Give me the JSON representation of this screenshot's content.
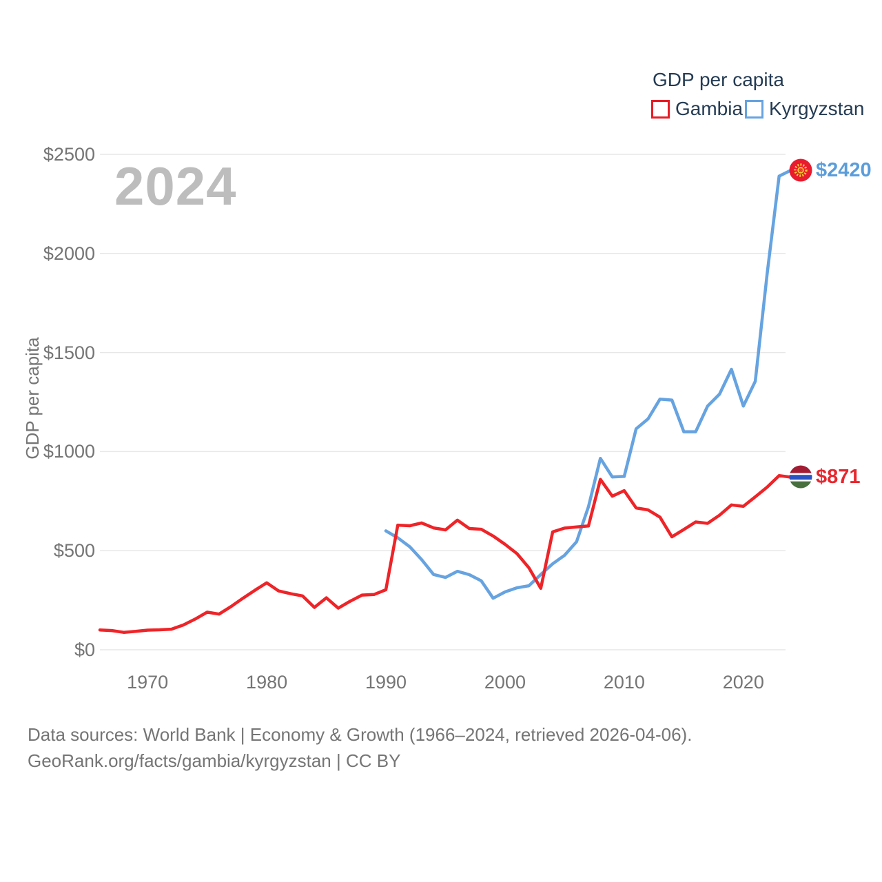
{
  "watermark": "2024",
  "legend": {
    "title": "GDP per capita",
    "items": [
      {
        "label": "Gambia",
        "color": "#e81c24"
      },
      {
        "label": "Kyrgyzstan",
        "color": "#66a3e0"
      }
    ]
  },
  "end_labels": {
    "kyrgyzstan": {
      "text": "$2420",
      "color": "#5a9ddb",
      "flag_icon": "kyrgyzstan-flag-icon"
    },
    "gambia": {
      "text": "$871",
      "color": "#e8262d",
      "flag_icon": "gambia-flag-icon"
    }
  },
  "footer": {
    "line1": "Data sources: World Bank | Economy & Growth (1966–2024, retrieved 2026-04-06).",
    "line2": "GeoRank.org/facts/gambia/kyrgyzstan | CC BY"
  },
  "colors": {
    "gambia_line": "#ee2428",
    "kyrgyzstan_line": "#66a3e0",
    "legend_text": "#243b53",
    "axis_text": "#757575",
    "watermark": "#bdbdbd",
    "gridline": "#e7e7e7"
  },
  "chart_data": {
    "type": "line",
    "title": "GDP per capita",
    "xlabel": "",
    "ylabel": "GDP per capita",
    "x_range": [
      1966,
      2024
    ],
    "ylim": [
      0,
      2500
    ],
    "yticks": [
      0,
      500,
      1000,
      1500,
      2000,
      2500
    ],
    "ytick_labels": [
      "$0",
      "$500",
      "$1000",
      "$1500",
      "$2000",
      "$2500"
    ],
    "xticks": [
      1970,
      1980,
      1990,
      2000,
      2010,
      2020
    ],
    "grid": "horizontal",
    "legend_position": "top-right",
    "series": [
      {
        "name": "Kyrgyzstan",
        "color": "#66a3e0",
        "start_year": 1990,
        "end_label": "$2420",
        "values": [
          600,
          565,
          520,
          455,
          380,
          365,
          396,
          379,
          348,
          260,
          292,
          313,
          323,
          380,
          434,
          477,
          545,
          722,
          966,
          872,
          875,
          1115,
          1165,
          1265,
          1260,
          1100,
          1100,
          1230,
          1290,
          1415,
          1230,
          1355,
          1900,
          2390,
          2420
        ]
      },
      {
        "name": "Gambia",
        "color": "#ee2428",
        "start_year": 1966,
        "end_label": "$871",
        "values": [
          100,
          97,
          88,
          93,
          99,
          101,
          104,
          125,
          155,
          190,
          180,
          218,
          260,
          300,
          338,
          297,
          283,
          272,
          214,
          262,
          210,
          245,
          276,
          279,
          303,
          629,
          626,
          640,
          615,
          605,
          654,
          612,
          608,
          574,
          532,
          485,
          414,
          310,
          595,
          614,
          620,
          625,
          860,
          775,
          803,
          716,
          706,
          669,
          570,
          607,
          645,
          638,
          679,
          731,
          724,
          772,
          821,
          879,
          871
        ]
      }
    ]
  }
}
